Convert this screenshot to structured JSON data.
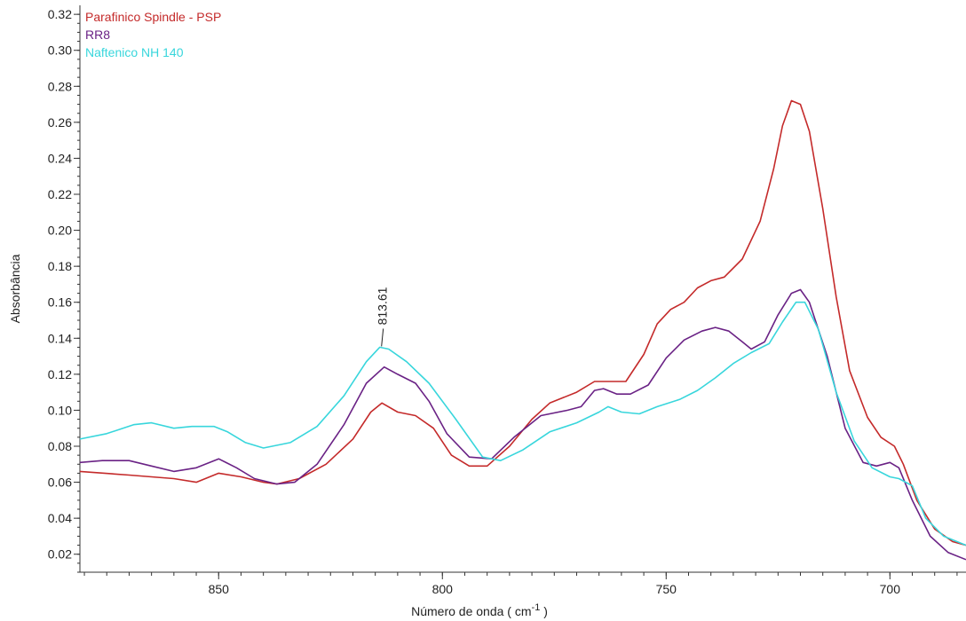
{
  "chart_data": {
    "type": "line",
    "xlabel": "Número de onda ( cm",
    "xlabel_sup": "-1",
    "xlabel_end": " )",
    "ylabel": "Absorbância",
    "xlim": [
      881,
      683
    ],
    "ylim": [
      0.01,
      0.325
    ],
    "x_ticks": [
      850,
      800,
      750,
      700
    ],
    "y_ticks": [
      0.02,
      0.04,
      0.06,
      0.08,
      0.1,
      0.12,
      0.14,
      0.16,
      0.18,
      0.2,
      0.22,
      0.24,
      0.26,
      0.28,
      0.3,
      0.32
    ],
    "x_reversed": true,
    "grid": false,
    "legend_position": "top-left",
    "annotation": {
      "label": "813.61",
      "x": 813.61,
      "y": 0.1355
    },
    "series": [
      {
        "name": "Parafinico Spindle - PSP",
        "color": "#c42a2a",
        "points": [
          [
            881,
            0.066
          ],
          [
            870,
            0.064
          ],
          [
            860,
            0.062
          ],
          [
            855,
            0.06
          ],
          [
            850,
            0.065
          ],
          [
            845,
            0.063
          ],
          [
            840,
            0.06
          ],
          [
            837,
            0.059
          ],
          [
            832,
            0.062
          ],
          [
            826,
            0.07
          ],
          [
            820,
            0.084
          ],
          [
            816,
            0.099
          ],
          [
            813.5,
            0.104
          ],
          [
            810,
            0.099
          ],
          [
            806,
            0.097
          ],
          [
            802,
            0.09
          ],
          [
            798,
            0.075
          ],
          [
            794,
            0.069
          ],
          [
            790,
            0.069
          ],
          [
            785,
            0.08
          ],
          [
            780,
            0.095
          ],
          [
            776,
            0.104
          ],
          [
            770,
            0.11
          ],
          [
            766,
            0.116
          ],
          [
            763,
            0.116
          ],
          [
            759,
            0.116
          ],
          [
            755,
            0.131
          ],
          [
            752,
            0.148
          ],
          [
            749,
            0.156
          ],
          [
            746,
            0.16
          ],
          [
            743,
            0.168
          ],
          [
            740,
            0.172
          ],
          [
            737,
            0.174
          ],
          [
            733,
            0.184
          ],
          [
            729,
            0.205
          ],
          [
            726,
            0.234
          ],
          [
            724,
            0.258
          ],
          [
            722,
            0.272
          ],
          [
            720,
            0.27
          ],
          [
            718,
            0.255
          ],
          [
            715,
            0.212
          ],
          [
            712,
            0.163
          ],
          [
            709,
            0.122
          ],
          [
            705,
            0.096
          ],
          [
            702,
            0.085
          ],
          [
            699,
            0.08
          ],
          [
            697,
            0.07
          ],
          [
            694,
            0.05
          ],
          [
            690,
            0.034
          ],
          [
            686,
            0.027
          ],
          [
            683,
            0.025
          ]
        ]
      },
      {
        "name": "RR8",
        "color": "#6a2285",
        "points": [
          [
            881,
            0.071
          ],
          [
            876,
            0.072
          ],
          [
            870,
            0.072
          ],
          [
            865,
            0.069
          ],
          [
            860,
            0.066
          ],
          [
            855,
            0.068
          ],
          [
            850,
            0.073
          ],
          [
            846,
            0.068
          ],
          [
            842,
            0.062
          ],
          [
            837,
            0.059
          ],
          [
            833,
            0.06
          ],
          [
            828,
            0.07
          ],
          [
            822,
            0.092
          ],
          [
            817,
            0.115
          ],
          [
            813,
            0.124
          ],
          [
            810,
            0.12
          ],
          [
            806,
            0.115
          ],
          [
            803,
            0.105
          ],
          [
            799,
            0.087
          ],
          [
            794,
            0.074
          ],
          [
            789,
            0.073
          ],
          [
            784,
            0.085
          ],
          [
            778,
            0.097
          ],
          [
            772,
            0.1
          ],
          [
            769,
            0.102
          ],
          [
            766,
            0.111
          ],
          [
            764,
            0.112
          ],
          [
            761,
            0.109
          ],
          [
            758,
            0.109
          ],
          [
            754,
            0.114
          ],
          [
            750,
            0.129
          ],
          [
            746,
            0.139
          ],
          [
            742,
            0.144
          ],
          [
            739,
            0.146
          ],
          [
            736,
            0.144
          ],
          [
            733,
            0.138
          ],
          [
            731,
            0.134
          ],
          [
            728,
            0.138
          ],
          [
            725,
            0.153
          ],
          [
            722,
            0.165
          ],
          [
            720,
            0.167
          ],
          [
            718,
            0.16
          ],
          [
            714,
            0.13
          ],
          [
            710,
            0.09
          ],
          [
            706,
            0.071
          ],
          [
            703,
            0.069
          ],
          [
            700,
            0.071
          ],
          [
            698,
            0.068
          ],
          [
            695,
            0.05
          ],
          [
            691,
            0.03
          ],
          [
            687,
            0.021
          ],
          [
            683,
            0.017
          ]
        ]
      },
      {
        "name": "Naftenico NH 140",
        "color": "#38d6dc",
        "points": [
          [
            881,
            0.084
          ],
          [
            875,
            0.087
          ],
          [
            869,
            0.092
          ],
          [
            865,
            0.093
          ],
          [
            860,
            0.09
          ],
          [
            856,
            0.091
          ],
          [
            851,
            0.091
          ],
          [
            848,
            0.088
          ],
          [
            844,
            0.082
          ],
          [
            840,
            0.079
          ],
          [
            834,
            0.082
          ],
          [
            828,
            0.091
          ],
          [
            822,
            0.108
          ],
          [
            817,
            0.127
          ],
          [
            814,
            0.135
          ],
          [
            812,
            0.134
          ],
          [
            808,
            0.127
          ],
          [
            803,
            0.115
          ],
          [
            797,
            0.095
          ],
          [
            791,
            0.074
          ],
          [
            787,
            0.072
          ],
          [
            782,
            0.078
          ],
          [
            776,
            0.088
          ],
          [
            770,
            0.093
          ],
          [
            765,
            0.099
          ],
          [
            763,
            0.102
          ],
          [
            760,
            0.099
          ],
          [
            756,
            0.098
          ],
          [
            752,
            0.102
          ],
          [
            747,
            0.106
          ],
          [
            743,
            0.111
          ],
          [
            739,
            0.118
          ],
          [
            735,
            0.126
          ],
          [
            731,
            0.132
          ],
          [
            727,
            0.137
          ],
          [
            724,
            0.149
          ],
          [
            721,
            0.16
          ],
          [
            719,
            0.16
          ],
          [
            716,
            0.145
          ],
          [
            712,
            0.11
          ],
          [
            708,
            0.083
          ],
          [
            704,
            0.068
          ],
          [
            700,
            0.063
          ],
          [
            698,
            0.062
          ],
          [
            695,
            0.058
          ],
          [
            692,
            0.04
          ],
          [
            688,
            0.03
          ],
          [
            683,
            0.025
          ]
        ]
      }
    ]
  }
}
